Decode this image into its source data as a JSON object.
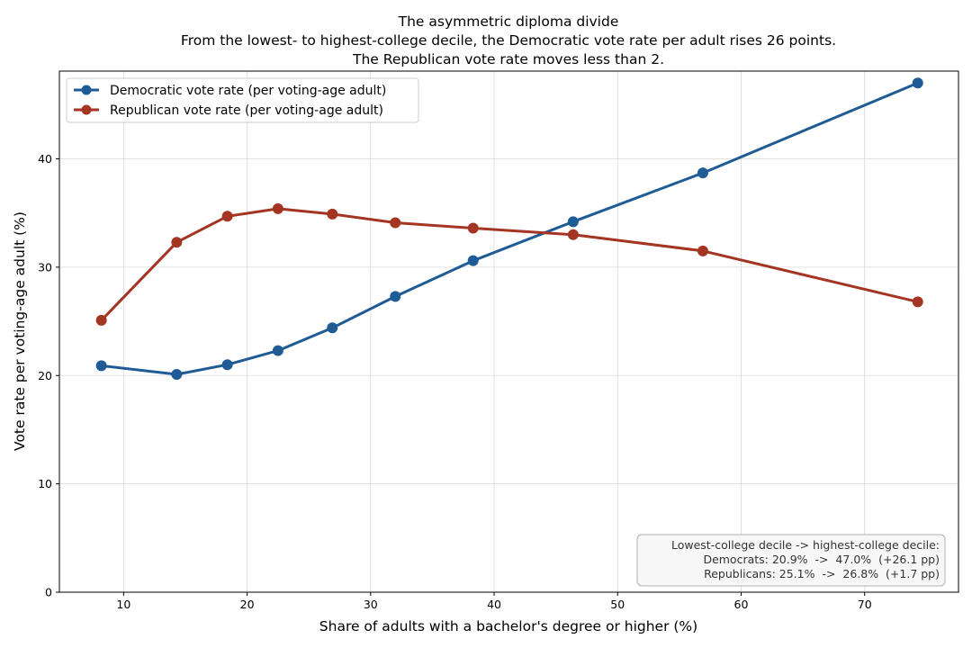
{
  "chart_data": {
    "type": "line",
    "title_lines": [
      "The asymmetric diploma divide",
      "From the lowest- to highest-college decile, the Democratic vote rate per adult rises 26 points.",
      "The Republican vote rate moves less than 2."
    ],
    "xlabel": "Share of adults with a bachelor's degree or higher (%)",
    "ylabel": "Vote rate per voting-age adult (%)",
    "xlim": [
      4.8,
      77.6
    ],
    "ylim": [
      0,
      48.1
    ],
    "xticks": [
      10,
      20,
      30,
      40,
      50,
      60,
      70
    ],
    "yticks": [
      0,
      10,
      20,
      30,
      40
    ],
    "grid": true,
    "legend_position": "top-left",
    "series": [
      {
        "name": "Democratic vote rate (per voting-age adult)",
        "color": "#1f5b94",
        "x": [
          8.2,
          14.3,
          18.4,
          22.5,
          26.9,
          32.0,
          38.3,
          46.4,
          56.9,
          74.3
        ],
        "y": [
          20.9,
          20.1,
          21.0,
          22.3,
          24.4,
          27.3,
          30.6,
          34.2,
          38.7,
          47.0
        ]
      },
      {
        "name": "Republican vote rate (per voting-age adult)",
        "color": "#a33522",
        "x": [
          8.2,
          14.3,
          18.4,
          22.5,
          26.9,
          32.0,
          38.3,
          46.4,
          56.9,
          74.3
        ],
        "y": [
          25.1,
          32.3,
          34.7,
          35.4,
          34.9,
          34.1,
          33.6,
          33.0,
          31.5,
          26.8
        ]
      }
    ],
    "annotation_lines": [
      "Lowest-college decile -> highest-college decile:",
      "Democrats: 20.9%  ->  47.0%  (+26.1 pp)",
      "Republicans: 25.1%  ->  26.8%  (+1.7 pp)"
    ]
  }
}
